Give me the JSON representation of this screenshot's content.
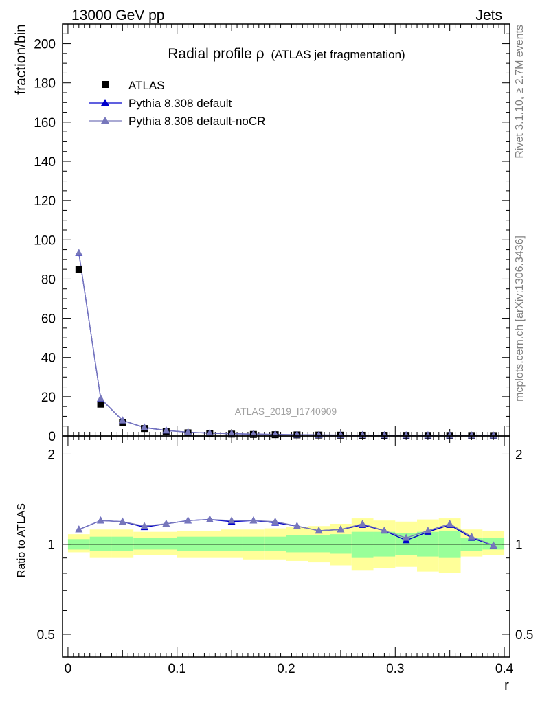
{
  "header": {
    "left": "13000 GeV pp",
    "right": "Jets"
  },
  "side_labels": {
    "rivet": "Rivet 3.1.10, ≥ 2.7M events",
    "mcplots": "mcplots.cern.ch [arXiv:1306.3436]"
  },
  "analysis_id": "ATLAS_2019_I1740909",
  "colors": {
    "data": "#000000",
    "default": "#0000cc",
    "noCR": "#7777bb",
    "band_inner": "#99ff99",
    "band_outer": "#ffff99"
  },
  "chart_data": [
    {
      "type": "scatter",
      "title": "Radial profile ρ",
      "title_suffix": "(ATLAS jet fragmentation)",
      "ylabel": "fraction/bin",
      "xlim": [
        -0.005,
        0.405
      ],
      "ylim": [
        0,
        210
      ],
      "yticks": [
        0,
        20,
        40,
        60,
        80,
        100,
        120,
        140,
        160,
        180,
        200
      ],
      "legend_position": "top-left",
      "x": [
        0.01,
        0.03,
        0.05,
        0.07,
        0.09,
        0.11,
        0.13,
        0.15,
        0.17,
        0.19,
        0.21,
        0.23,
        0.25,
        0.27,
        0.29,
        0.31,
        0.33,
        0.35,
        0.37,
        0.39
      ],
      "series": [
        {
          "name": "ATLAS",
          "marker": "square",
          "values": [
            85.0,
            16.2,
            6.7,
            3.8,
            2.4,
            1.6,
            1.2,
            0.95,
            0.78,
            0.65,
            0.55,
            0.47,
            0.42,
            0.37,
            0.33,
            0.3,
            0.27,
            0.25,
            0.23,
            0.21
          ]
        },
        {
          "name": "Pythia 8.308 default",
          "marker": "triangle",
          "values": [
            93.2,
            19.0,
            7.9,
            4.3,
            2.8,
            1.9,
            1.45,
            1.15,
            0.94,
            0.78,
            0.63,
            0.52,
            0.47,
            0.43,
            0.37,
            0.31,
            0.3,
            0.29,
            0.24,
            0.21
          ]
        },
        {
          "name": "Pythia 8.308 default-noCR",
          "marker": "triangle",
          "values": [
            93.3,
            19.1,
            7.9,
            4.4,
            2.8,
            1.9,
            1.46,
            1.15,
            0.95,
            0.78,
            0.63,
            0.52,
            0.47,
            0.43,
            0.37,
            0.32,
            0.3,
            0.29,
            0.24,
            0.21
          ]
        }
      ]
    },
    {
      "type": "line",
      "ylabel": "Ratio to ATLAS",
      "xlabel": "r",
      "xlim": [
        -0.005,
        0.405
      ],
      "ylim": [
        0.42,
        2.3
      ],
      "yscale": "log",
      "yticks": [
        "0.5",
        "1",
        "2"
      ],
      "xticks": [
        "0",
        "0.1",
        "0.2",
        "0.3",
        "0.4"
      ],
      "reference_line": 1,
      "x": [
        0.01,
        0.03,
        0.05,
        0.07,
        0.09,
        0.11,
        0.13,
        0.15,
        0.17,
        0.19,
        0.21,
        0.23,
        0.25,
        0.27,
        0.29,
        0.31,
        0.33,
        0.35,
        0.37,
        0.39
      ],
      "bands": {
        "inner_lo": [
          0.96,
          0.95,
          0.95,
          0.96,
          0.96,
          0.95,
          0.95,
          0.95,
          0.95,
          0.95,
          0.94,
          0.94,
          0.93,
          0.9,
          0.91,
          0.92,
          0.91,
          0.9,
          0.95,
          0.96
        ],
        "inner_hi": [
          1.04,
          1.06,
          1.06,
          1.05,
          1.05,
          1.06,
          1.06,
          1.06,
          1.06,
          1.06,
          1.07,
          1.07,
          1.08,
          1.1,
          1.1,
          1.09,
          1.1,
          1.11,
          1.05,
          1.05
        ],
        "outer_lo": [
          0.94,
          0.9,
          0.9,
          0.92,
          0.92,
          0.9,
          0.9,
          0.9,
          0.89,
          0.89,
          0.88,
          0.87,
          0.85,
          0.82,
          0.83,
          0.84,
          0.81,
          0.8,
          0.91,
          0.92
        ],
        "outer_hi": [
          1.08,
          1.12,
          1.12,
          1.1,
          1.1,
          1.11,
          1.11,
          1.12,
          1.12,
          1.13,
          1.14,
          1.15,
          1.17,
          1.22,
          1.2,
          1.19,
          1.21,
          1.22,
          1.12,
          1.11
        ]
      },
      "series": [
        {
          "name": "Pythia 8.308 default",
          "values": [
            1.12,
            1.2,
            1.19,
            1.14,
            1.17,
            1.2,
            1.21,
            1.19,
            1.2,
            1.18,
            1.15,
            1.11,
            1.12,
            1.16,
            1.11,
            1.03,
            1.1,
            1.16,
            1.05,
            0.99
          ]
        },
        {
          "name": "Pythia 8.308 default-noCR",
          "values": [
            1.12,
            1.2,
            1.19,
            1.15,
            1.17,
            1.2,
            1.21,
            1.2,
            1.2,
            1.19,
            1.15,
            1.11,
            1.12,
            1.17,
            1.11,
            1.05,
            1.11,
            1.17,
            1.06,
            0.99
          ]
        }
      ]
    }
  ]
}
